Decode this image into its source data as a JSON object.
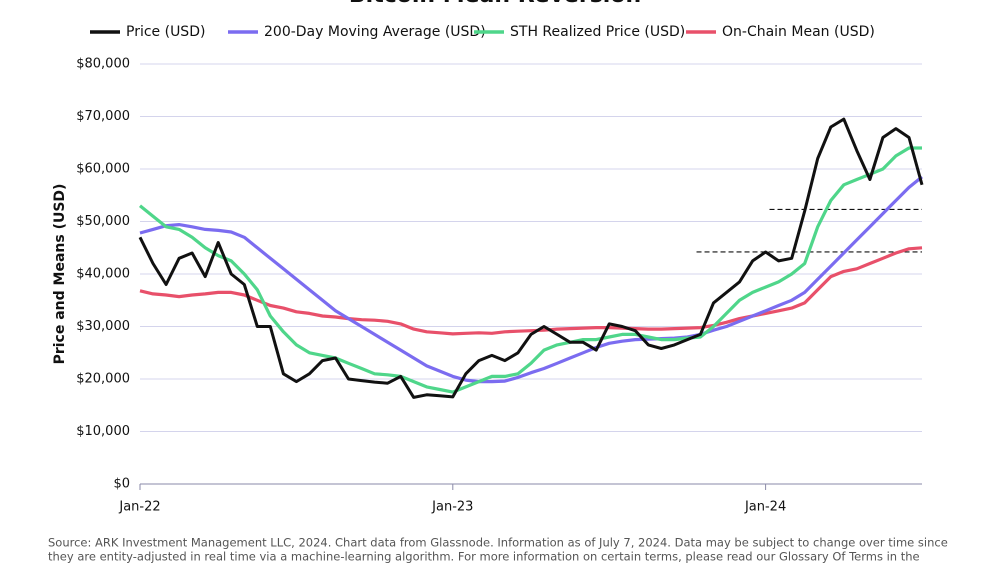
{
  "chart_data": {
    "type": "line",
    "title": "Bitcoin Mean Reversion",
    "y_label": "Price and Means (USD)",
    "footnote": [
      "Source: ARK Investment Management LLC, 2024. Chart data from Glassnode. Information as of July 7, 2024. Data may be subject to change over time since",
      "they are entity-adjusted in real time via a machine-learning algorithm. For more information on certain terms, please read our Glossary Of Terms in the"
    ],
    "categories": [
      "Jan-22",
      null,
      null,
      null,
      null,
      null,
      null,
      null,
      null,
      null,
      null,
      null,
      null,
      null,
      null,
      null,
      null,
      null,
      null,
      null,
      null,
      null,
      null,
      null,
      "Jan-23",
      null,
      null,
      null,
      null,
      null,
      null,
      null,
      null,
      null,
      null,
      null,
      null,
      null,
      null,
      null,
      null,
      null,
      null,
      null,
      null,
      null,
      null,
      null,
      "Jan-24",
      null,
      null,
      null,
      null,
      null,
      null,
      null,
      null,
      null,
      null,
      null,
      null
    ],
    "series": [
      {
        "name": "Price (USD)",
        "color": "#111111",
        "values": [
          47000,
          42000,
          38000,
          43000,
          44000,
          39500,
          46000,
          40000,
          38000,
          30000,
          30000,
          21000,
          19500,
          21000,
          23500,
          24000,
          20000,
          19700,
          19400,
          19200,
          20500,
          16500,
          17000,
          16800,
          16600,
          21000,
          23500,
          24500,
          23500,
          25000,
          28500,
          30000,
          28500,
          27000,
          27000,
          25500,
          30500,
          30000,
          29200,
          26500,
          25800,
          26500,
          27500,
          28500,
          34500,
          36500,
          38500,
          42500,
          44200,
          42500,
          43000,
          52000,
          62000,
          68000,
          69500,
          63500,
          58000,
          66000,
          67700,
          66000,
          57000
        ]
      },
      {
        "name": "200-Day Moving Average (USD)",
        "color": "#7b6cf0",
        "values": [
          47800,
          48500,
          49200,
          49400,
          49000,
          48500,
          48300,
          48000,
          47000,
          45000,
          43000,
          41000,
          39000,
          37000,
          35000,
          33000,
          31500,
          30000,
          28500,
          27000,
          25500,
          24000,
          22500,
          21500,
          20500,
          19800,
          19500,
          19500,
          19600,
          20300,
          21200,
          22000,
          23000,
          24000,
          25000,
          26000,
          26800,
          27200,
          27500,
          27600,
          27700,
          27800,
          28000,
          28500,
          29300,
          30000,
          31000,
          32000,
          33000,
          34000,
          35000,
          36500,
          39000,
          41500,
          44000,
          46500,
          49000,
          51500,
          54000,
          56500,
          58500
        ]
      },
      {
        "name": "STH Realized Price (USD)",
        "color": "#4fd68a",
        "values": [
          53000,
          51000,
          49000,
          48500,
          47000,
          45000,
          43500,
          42500,
          40000,
          37000,
          32000,
          29000,
          26500,
          25000,
          24500,
          24000,
          23000,
          22000,
          21000,
          20800,
          20500,
          19500,
          18500,
          18000,
          17500,
          18500,
          19500,
          20500,
          20500,
          21000,
          23000,
          25500,
          26500,
          27000,
          27500,
          27500,
          28000,
          28500,
          28500,
          28000,
          27500,
          27500,
          27800,
          28000,
          30000,
          32500,
          35000,
          36500,
          37500,
          38500,
          40000,
          42000,
          49000,
          54000,
          57000,
          58000,
          59000,
          60000,
          62500,
          64000,
          64000
        ]
      },
      {
        "name": "On-Chain Mean (USD)",
        "color": "#e8506a",
        "values": [
          36800,
          36200,
          36000,
          35700,
          36000,
          36200,
          36500,
          36500,
          36000,
          35000,
          34000,
          33500,
          32800,
          32500,
          32000,
          31800,
          31500,
          31300,
          31200,
          31000,
          30500,
          29500,
          29000,
          28800,
          28600,
          28700,
          28800,
          28700,
          29000,
          29100,
          29200,
          29300,
          29500,
          29600,
          29700,
          29800,
          29800,
          29700,
          29600,
          29500,
          29500,
          29600,
          29700,
          29800,
          30200,
          30800,
          31500,
          32000,
          32500,
          33000,
          33500,
          34500,
          37000,
          39500,
          40500,
          41000,
          42000,
          43000,
          44000,
          44800,
          45000
        ]
      }
    ],
    "reference_lines": [
      {
        "value": 52300
      },
      {
        "value": 44200
      }
    ],
    "ylim": [
      0,
      80000
    ],
    "yticks": [
      {
        "value": 0,
        "label": "$0"
      },
      {
        "value": 10000,
        "label": "$10,000"
      },
      {
        "value": 20000,
        "label": "$20,000"
      },
      {
        "value": 30000,
        "label": "$30,000"
      },
      {
        "value": 40000,
        "label": "$40,000"
      },
      {
        "value": 50000,
        "label": "$50,000"
      },
      {
        "value": 60000,
        "label": "$60,000"
      },
      {
        "value": 70000,
        "label": "$70,000"
      },
      {
        "value": 80000,
        "label": "$80,000"
      }
    ],
    "grid": true
  }
}
